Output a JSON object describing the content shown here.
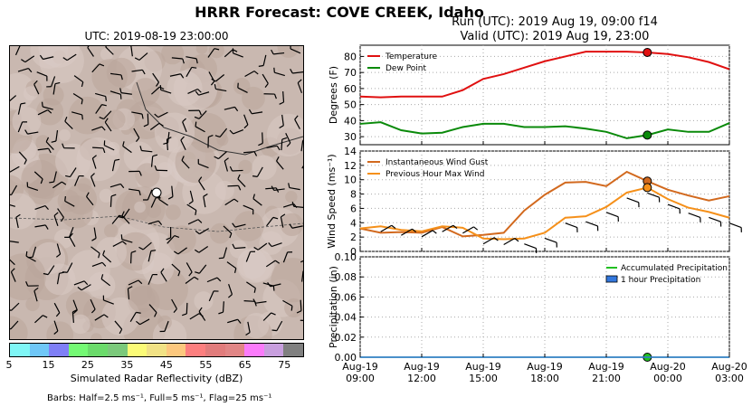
{
  "title": "HRRR Forecast: COVE CREEK, Idaho",
  "run_line": "Run (UTC): 2019 Aug 19, 09:00 f14",
  "valid_line": "Valid (UTC): 2019 Aug 19, 23:00",
  "map": {
    "title": "UTC: 2019-08-19 23:00:00",
    "colorbar_label": "Simulated Radar Reflectivity (dBZ)",
    "colorbar_ticks": [
      "5",
      "15",
      "25",
      "35",
      "45",
      "55",
      "65",
      "75"
    ],
    "colorbar_colors": [
      "#7ff6f6",
      "#6fc7f7",
      "#7f7ff6",
      "#74f974",
      "#6bdb6b",
      "#7bc97b",
      "#fbfb77",
      "#f1e285",
      "#fcc87e",
      "#fc7f7f",
      "#e17c7c",
      "#e18686",
      "#fb7bfb",
      "#c89fde",
      "#808080"
    ],
    "barbs_note": "Barbs: Half=2.5 ms⁻¹, Full=5 ms⁻¹, Flag=25 ms⁻¹"
  },
  "colors": {
    "temperature": "#e01010",
    "dewpoint": "#0a8a0a",
    "gust": "#d2691e",
    "maxwind": "#f5901a",
    "accum": "#22c022",
    "hourly": "#3377dd"
  },
  "chart_data": [
    {
      "type": "line",
      "ylabel": "Degrees (F)",
      "ylim": [
        25,
        87
      ],
      "yticks": [
        "30",
        "40",
        "50",
        "60",
        "70",
        "80"
      ],
      "x": [
        "09:00",
        "10:00",
        "11:00",
        "12:00",
        "13:00",
        "14:00",
        "15:00",
        "16:00",
        "17:00",
        "18:00",
        "19:00",
        "20:00",
        "21:00",
        "22:00",
        "23:00",
        "00:00",
        "01:00",
        "02:00",
        "03:00"
      ],
      "series": [
        {
          "name": "Temperature",
          "values": [
            55,
            54.5,
            55,
            55,
            55,
            59,
            66,
            69,
            73,
            77,
            80,
            83,
            83,
            83,
            82.5,
            81.5,
            79.5,
            76.5,
            72
          ]
        },
        {
          "name": "Dew Point",
          "values": [
            38,
            39,
            34,
            32,
            32.5,
            36,
            38,
            38,
            36,
            36,
            36.5,
            35,
            33,
            29,
            31,
            34.5,
            33,
            33,
            38.5
          ]
        }
      ],
      "marker_index": 14,
      "grid": true,
      "legend": "top-left"
    },
    {
      "type": "line",
      "ylabel": "Wind Speed (ms⁻¹)",
      "ylim": [
        0,
        14
      ],
      "yticks": [
        "0",
        "2",
        "4",
        "6",
        "8",
        "10",
        "12",
        "14"
      ],
      "series": [
        {
          "name": "Instantaneous Wind Gust",
          "values": [
            3.2,
            2.6,
            2.7,
            2.6,
            3.4,
            2.1,
            2.3,
            2.6,
            5.7,
            7.9,
            9.6,
            9.7,
            9.1,
            11.1,
            9.8,
            8.6,
            7.8,
            7.1,
            7.7
          ]
        },
        {
          "name": "Previous Hour Max Wind",
          "values": [
            3.2,
            3.5,
            3.0,
            2.8,
            3.5,
            3.3,
            1.8,
            1.7,
            1.8,
            2.6,
            4.7,
            4.9,
            6.2,
            8.2,
            8.9,
            7.3,
            6.1,
            5.5,
            4.7
          ]
        }
      ],
      "marker_index": 14,
      "grid": true,
      "legend": "top-left"
    },
    {
      "type": "area",
      "ylabel": "Precipitation (in)",
      "ylim": [
        0,
        0.1
      ],
      "yticks": [
        "0.00",
        "0.02",
        "0.04",
        "0.06",
        "0.08",
        "0.10"
      ],
      "series": [
        {
          "name": "Accumulated Precipitation",
          "values": [
            0,
            0,
            0,
            0,
            0,
            0,
            0,
            0,
            0,
            0,
            0,
            0,
            0,
            0,
            0,
            0,
            0,
            0,
            0
          ]
        },
        {
          "name": "1 hour Precipitation",
          "values": [
            0,
            0,
            0,
            0,
            0,
            0,
            0,
            0,
            0,
            0,
            0,
            0,
            0,
            0,
            0,
            0,
            0,
            0,
            0
          ]
        }
      ],
      "xtick_labels": [
        [
          "Aug-19",
          "09:00"
        ],
        [
          "Aug-19",
          "12:00"
        ],
        [
          "Aug-19",
          "15:00"
        ],
        [
          "Aug-19",
          "18:00"
        ],
        [
          "Aug-19",
          "21:00"
        ],
        [
          "Aug-20",
          "00:00"
        ],
        [
          "Aug-20",
          "03:00"
        ]
      ],
      "marker_index": 14,
      "grid": true,
      "legend": "top-right"
    }
  ]
}
